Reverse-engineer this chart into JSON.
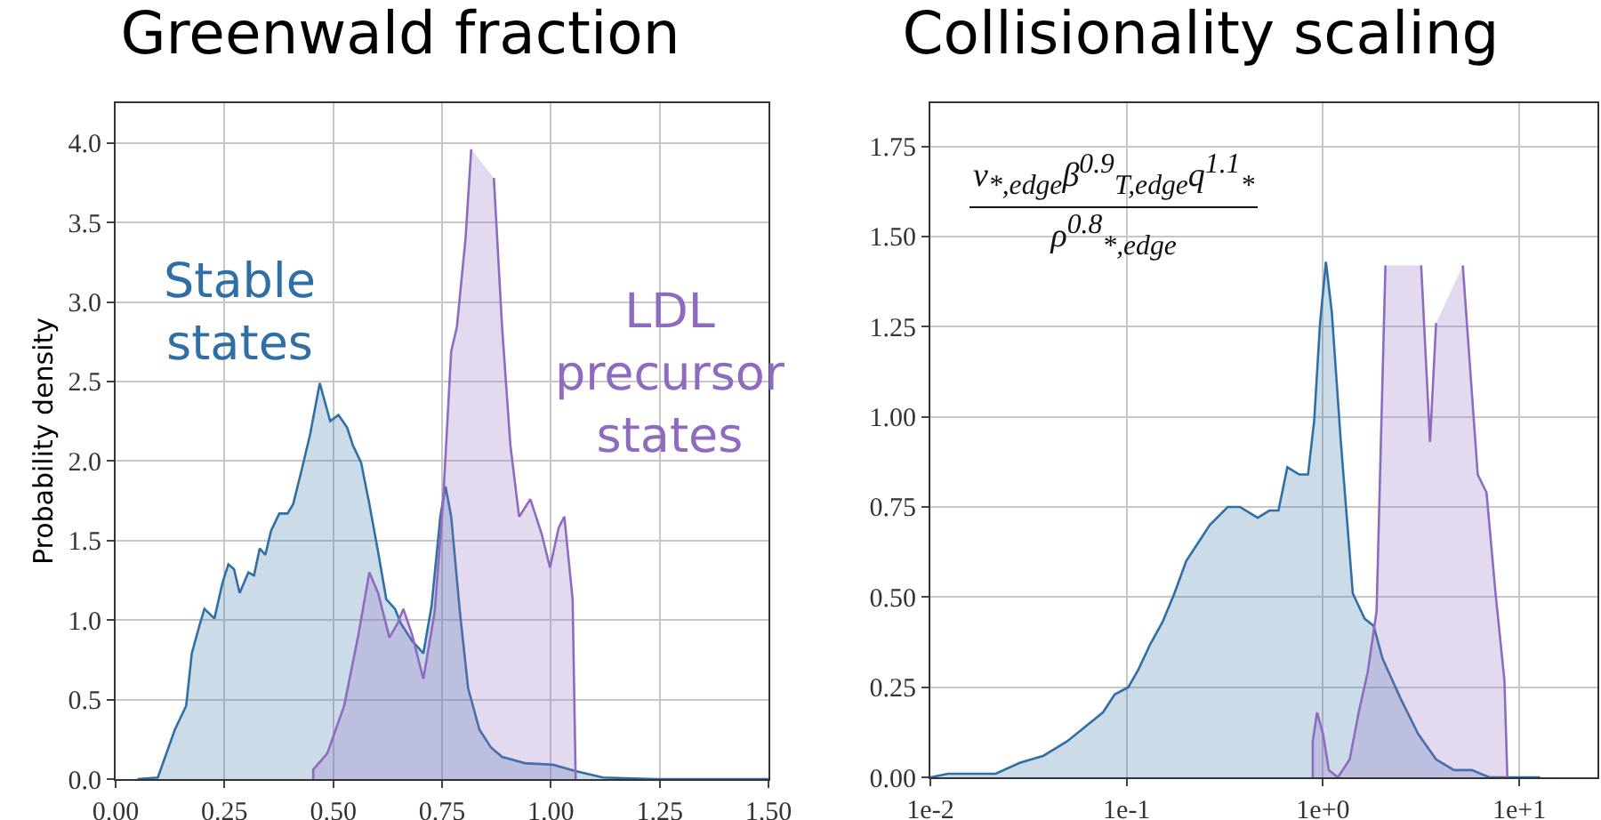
{
  "chart_data": [
    {
      "type": "area",
      "title": "Greenwald fraction",
      "ylabel": "Probability density",
      "xlim": [
        0,
        1.5
      ],
      "ylim": [
        0,
        4.25
      ],
      "xticks": [
        {
          "value": 0,
          "label": "0.00"
        },
        {
          "value": 0.25,
          "label": "0.25"
        },
        {
          "value": 0.5,
          "label": "0.50"
        },
        {
          "value": 0.75,
          "label": "0.75"
        },
        {
          "value": 1,
          "label": "1.00"
        },
        {
          "value": 1.25,
          "label": "1.25"
        },
        {
          "value": 1.5,
          "label": "1.50"
        }
      ],
      "yticks": [
        {
          "value": 0,
          "label": "0.0"
        },
        0.5,
        {
          "value": 1,
          "label": "1.0"
        },
        1.5,
        {
          "value": 2,
          "label": "2.0"
        },
        2.5,
        {
          "value": 3,
          "label": "3.0"
        },
        3.5,
        {
          "value": 4,
          "label": "4.0"
        }
      ],
      "grid": true,
      "legend": false,
      "marker": "none",
      "line_style": "solid",
      "series": [
        {
          "name": "Stable states",
          "color": "#2f6fa5",
          "x": [
            0.05,
            0.097,
            0.136,
            0.162,
            0.175,
            0.194,
            0.204,
            0.227,
            0.246,
            0.259,
            0.272,
            0.285,
            0.305,
            0.318,
            0.331,
            0.344,
            0.357,
            0.376,
            0.395,
            0.408,
            0.428,
            0.447,
            0.469,
            0.493,
            0.512,
            0.532,
            0.545,
            0.564,
            0.583,
            0.603,
            0.622,
            0.642,
            0.655,
            0.681,
            0.707,
            0.726,
            0.746,
            0.758,
            0.771,
            0.791,
            0.81,
            0.836,
            0.862,
            0.888,
            0.94,
            1.005,
            1.057,
            1.12,
            1.24,
            1.5
          ],
          "values": [
            0,
            0.01,
            0.31,
            0.46,
            0.79,
            0.98,
            1.07,
            1.01,
            1.24,
            1.35,
            1.32,
            1.17,
            1.3,
            1.28,
            1.45,
            1.41,
            1.56,
            1.67,
            1.67,
            1.73,
            1.95,
            2.17,
            2.49,
            2.25,
            2.29,
            2.21,
            2.1,
            1.99,
            1.73,
            1.43,
            1.13,
            1.07,
            0.98,
            0.87,
            0.79,
            1.09,
            1.65,
            1.84,
            1.65,
            1.05,
            0.57,
            0.31,
            0.2,
            0.14,
            0.1,
            0.09,
            0.05,
            0.01,
            0,
            0
          ]
        },
        {
          "name": "LDL precursor states",
          "color": "#8e6bbf",
          "x": [
            0.454,
            0.454,
            0.486,
            0.525,
            0.558,
            0.583,
            0.603,
            0.629,
            0.648,
            0.661,
            0.681,
            0.707,
            0.733,
            0.752,
            0.771,
            0.784,
            0.804,
            0.817,
            0.826,
            0.852,
            0.869,
            0.888,
            0.907,
            0.927,
            0.953,
            0.979,
            0.998,
            1.018,
            1.031,
            1.05,
            1.057
          ],
          "values": [
            0,
            0.06,
            0.16,
            0.46,
            0.91,
            1.3,
            1.17,
            0.89,
            0.98,
            1.07,
            0.91,
            0.63,
            1.05,
            1.73,
            2.69,
            2.84,
            3.4,
            3.96,
            null,
            null,
            3.78,
            2.84,
            2.1,
            1.65,
            1.76,
            1.54,
            1.33,
            1.58,
            1.65,
            1.13,
            0
          ]
        }
      ]
    },
    {
      "type": "area",
      "title": "Collisionality scaling",
      "annotations": [
        "ν$_{*,edge}$β$^{0.9}$$_{T,edge}$q$^{1.1}$$_{*}$",
        "ρ$^{0.8}$$_{*,edge}$"
      ],
      "log": "x",
      "xlim": [
        0.01,
        25
      ],
      "ylim": [
        0,
        1.87
      ],
      "xticks": [
        {
          "value": 0.01,
          "label": "1e-2"
        },
        {
          "value": 0.1,
          "label": "1e-1"
        },
        {
          "value": 1,
          "label": "1e+0"
        },
        {
          "value": 10,
          "label": "1e+1"
        }
      ],
      "yticks": [
        {
          "value": 0,
          "label": "0.00"
        },
        0.25,
        {
          "value": 0.5,
          "label": "0.50"
        },
        0.75,
        {
          "value": 1,
          "label": "1.00"
        },
        1.25,
        {
          "value": 1.5,
          "label": "1.50"
        },
        1.75
      ],
      "grid": true,
      "legend": false,
      "marker": "none",
      "line_style": "solid",
      "series": [
        {
          "color": "#2f6fa5",
          "x": [
            0.01,
            0.0123,
            0.0163,
            0.0215,
            0.0285,
            0.0377,
            0.0433,
            0.0498,
            0.0614,
            0.0757,
            0.0869,
            0.102,
            0.115,
            0.132,
            0.152,
            0.175,
            0.201,
            0.231,
            0.265,
            0.327,
            0.377,
            0.465,
            0.533,
            0.593,
            0.658,
            0.757,
            0.839,
            0.902,
            0.966,
            1.035,
            1.109,
            1.233,
            1.419,
            1.629,
            1.811,
            2.009,
            2.477,
            3.055,
            3.767,
            4.645,
            5.728,
            7.047,
            12.76
          ],
          "values": [
            0,
            0.01,
            0.01,
            0.01,
            0.04,
            0.06,
            0.08,
            0.1,
            0.14,
            0.18,
            0.23,
            0.25,
            0.3,
            0.37,
            0.43,
            0.51,
            0.6,
            0.65,
            0.7,
            0.75,
            0.75,
            0.72,
            0.74,
            0.74,
            0.86,
            0.84,
            0.84,
            0.99,
            1.26,
            1.43,
            1.29,
            0.93,
            0.51,
            0.44,
            0.42,
            0.33,
            0.22,
            0.12,
            0.05,
            0.02,
            0.02,
            0,
            0
          ]
        },
        {
          "color": "#8e6bbf",
          "x": [
            0.887,
            0.887,
            0.933,
            1,
            1.072,
            1.191,
            1.368,
            1.52,
            1.687,
            1.874,
            2.08,
            2.228,
            2.951,
            3.162,
            3.508,
            3.767,
            4.036,
            4.808,
            5.152,
            6.138,
            6.808,
            7.568,
            8.395,
            8.69
          ],
          "values": [
            0,
            0.1,
            0.18,
            0.12,
            0.02,
            0,
            0.05,
            0.18,
            0.29,
            0.46,
            1.42,
            null,
            null,
            1.42,
            0.93,
            1.26,
            null,
            null,
            1.42,
            0.84,
            0.79,
            0.51,
            0.27,
            0
          ]
        }
      ]
    }
  ]
}
